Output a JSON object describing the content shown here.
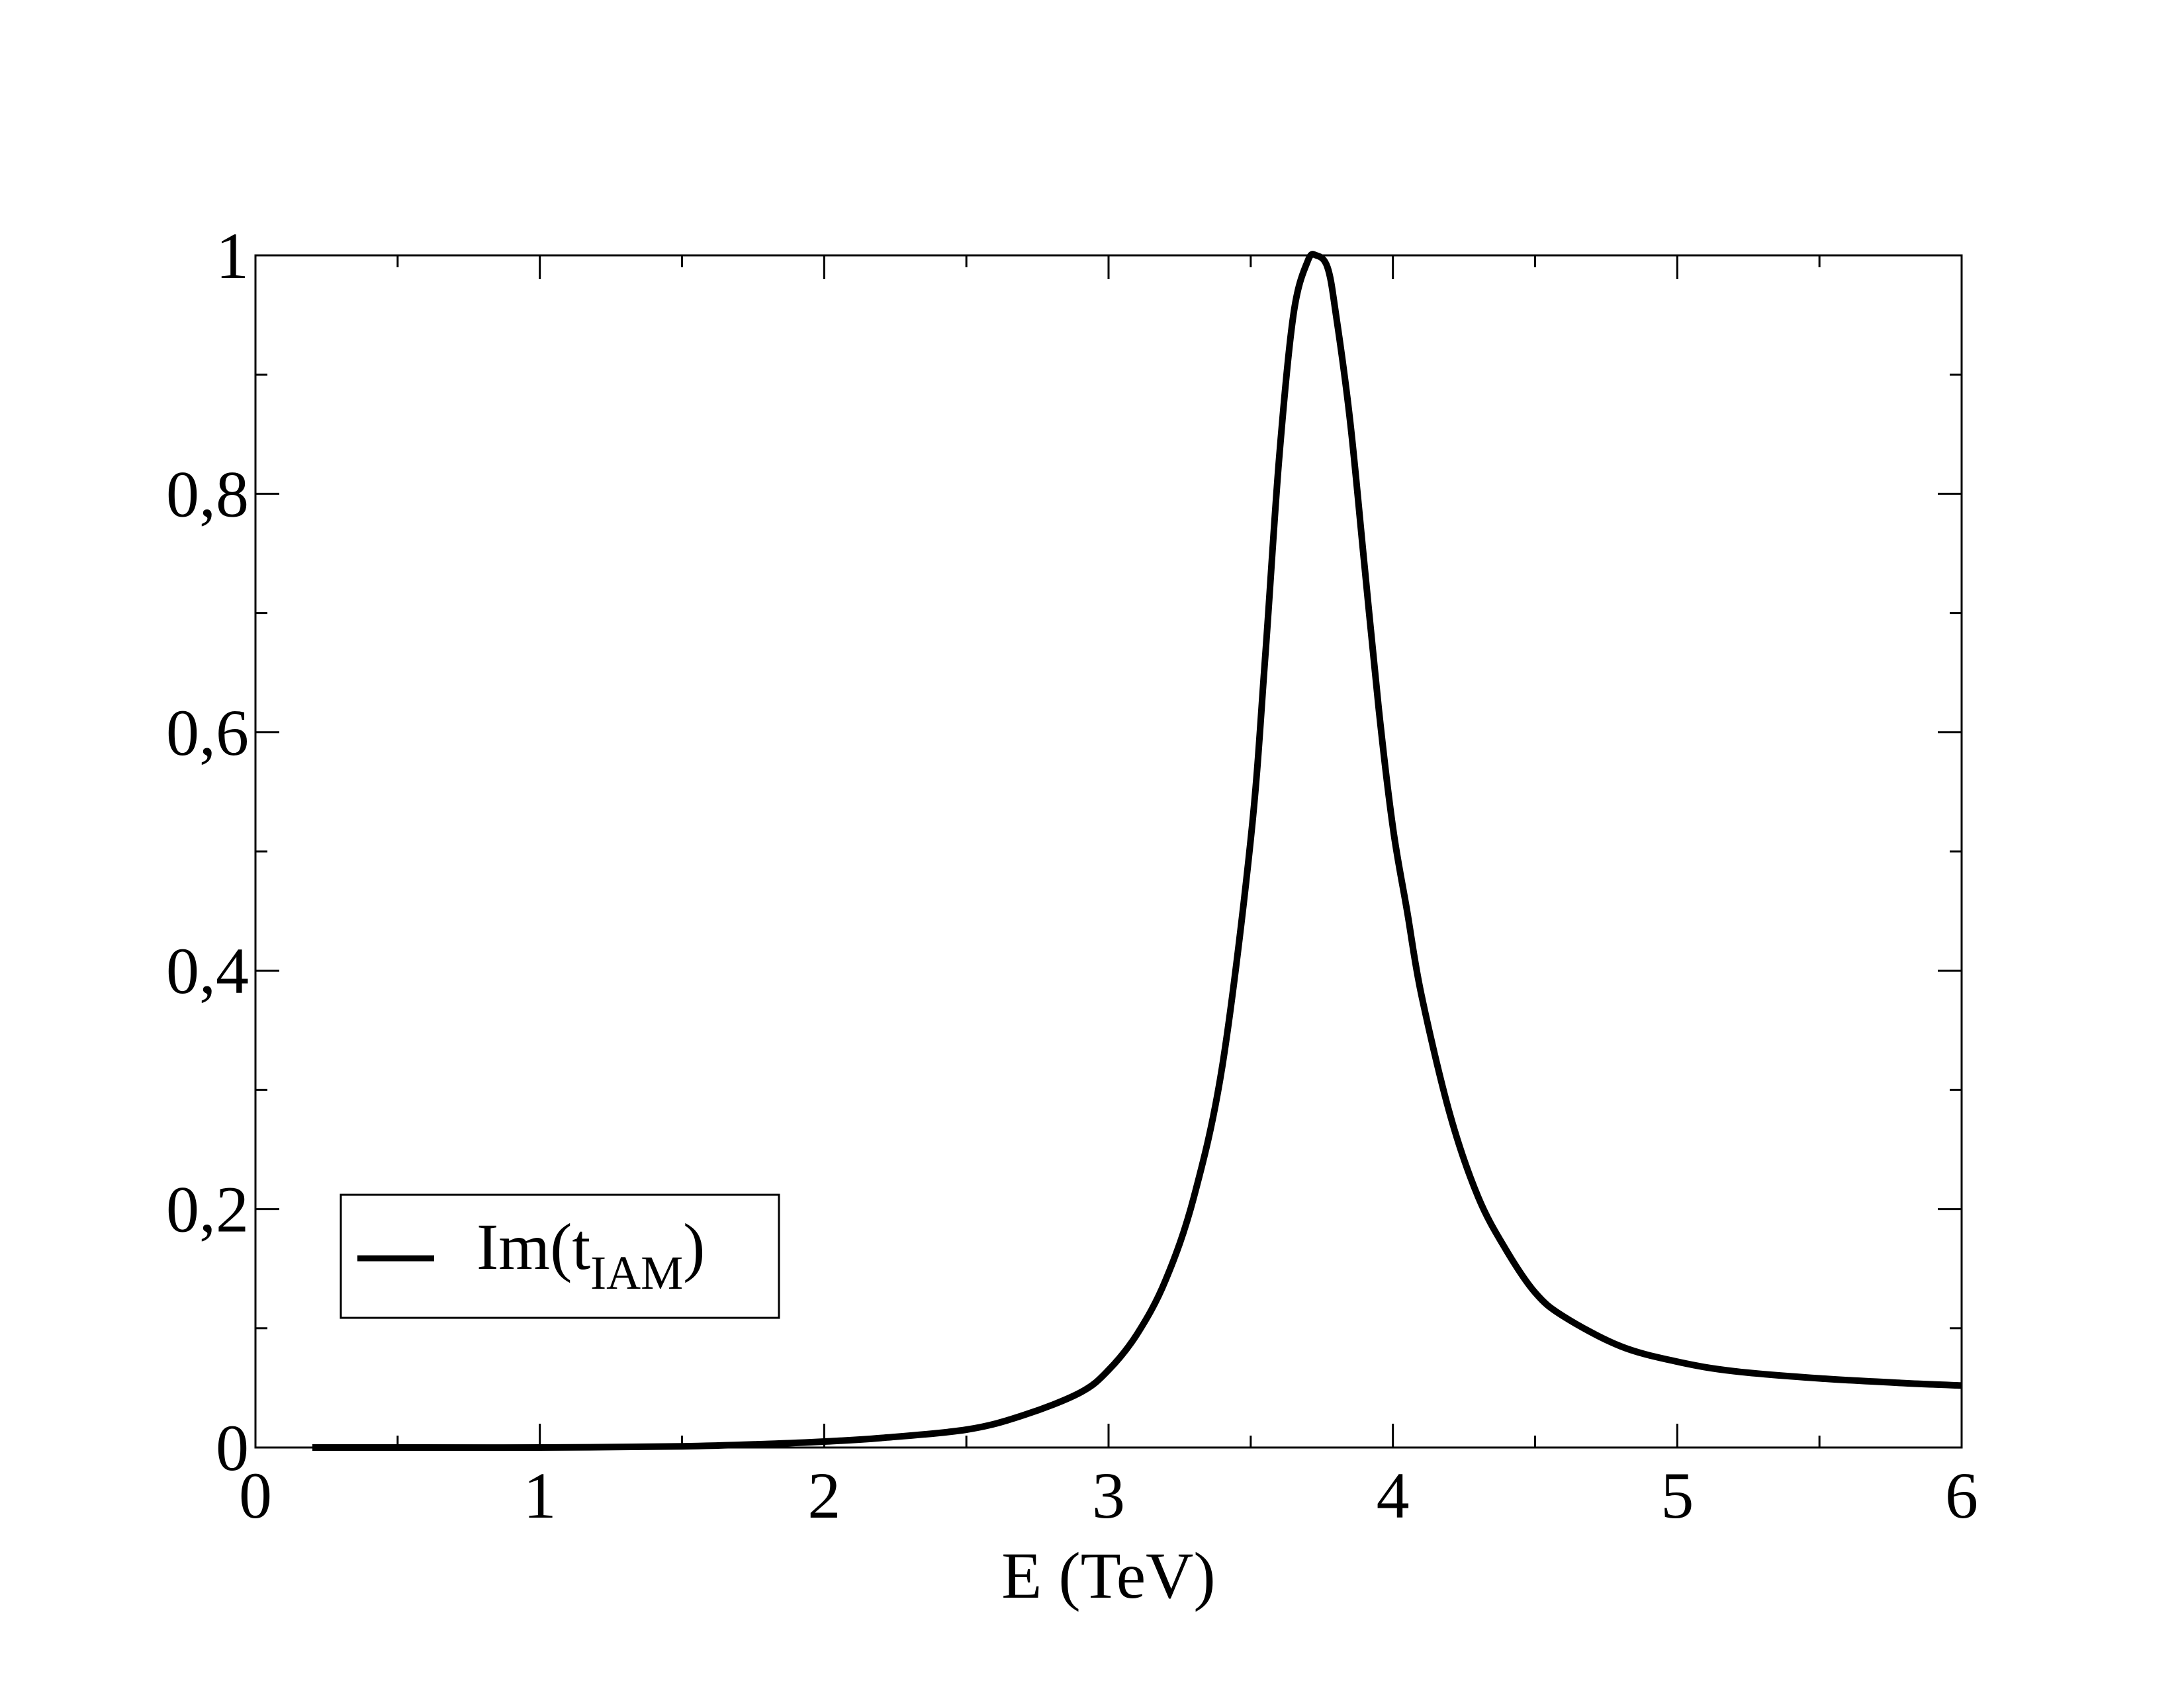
{
  "chart_data": {
    "type": "line",
    "title": "",
    "xlabel": "E (TeV)",
    "ylabel": "",
    "xlim": [
      0,
      6
    ],
    "ylim": [
      0,
      1
    ],
    "x_ticks": [
      "0",
      "1",
      "2",
      "3",
      "4",
      "5",
      "6"
    ],
    "y_ticks": [
      "0",
      "0,2",
      "0,4",
      "0,6",
      "0,8",
      "1"
    ],
    "grid": false,
    "legend_position": "bottom-left",
    "series": [
      {
        "name": "Im(tIAM)",
        "legend_main": "Im(t",
        "legend_sub": "IAM",
        "legend_close": ")",
        "color": "#000000",
        "x": [
          0.2,
          0.5,
          1.0,
          1.5,
          1.8,
          2.0,
          2.2,
          2.5,
          2.7,
          2.9,
          3.0,
          3.1,
          3.2,
          3.3,
          3.4,
          3.5,
          3.55,
          3.6,
          3.65,
          3.7,
          3.73,
          3.77,
          3.8,
          3.85,
          3.9,
          3.95,
          4.0,
          4.05,
          4.1,
          4.2,
          4.3,
          4.4,
          4.5,
          4.6,
          4.8,
          5.0,
          5.2,
          5.5,
          5.8,
          6.0
        ],
        "y": [
          0.0,
          0.0,
          0.0,
          0.001,
          0.003,
          0.005,
          0.008,
          0.015,
          0.027,
          0.046,
          0.065,
          0.095,
          0.14,
          0.21,
          0.32,
          0.51,
          0.66,
          0.83,
          0.95,
          0.995,
          1.0,
          0.99,
          0.95,
          0.86,
          0.74,
          0.62,
          0.52,
          0.45,
          0.38,
          0.28,
          0.21,
          0.165,
          0.13,
          0.11,
          0.085,
          0.072,
          0.064,
          0.058,
          0.054,
          0.052
        ]
      }
    ]
  }
}
